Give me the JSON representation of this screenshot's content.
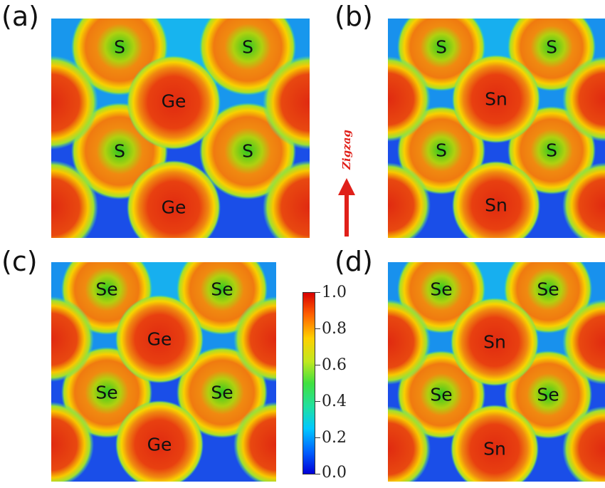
{
  "panels": [
    {
      "label": "(a)",
      "atoms": [
        "S",
        "S",
        "Ge",
        "S",
        "S",
        "Ge"
      ]
    },
    {
      "label": "(b)",
      "atoms": [
        "S",
        "S",
        "Sn",
        "S",
        "S",
        "Sn"
      ]
    },
    {
      "label": "(c)",
      "atoms": [
        "Se",
        "Se",
        "Ge",
        "Se",
        "Se",
        "Ge"
      ]
    },
    {
      "label": "(d)",
      "atoms": [
        "Se",
        "Se",
        "Sn",
        "Se",
        "Se",
        "Sn"
      ]
    }
  ],
  "direction_label": "Zigzag",
  "colorbar": {
    "ticks": [
      "1.0",
      "0.8",
      "0.6",
      "0.4",
      "0.2",
      "0.0"
    ],
    "range": [
      0.0,
      1.0
    ],
    "colors": [
      "#0000d8",
      "#00c8ff",
      "#40e040",
      "#ffd000",
      "#ff6000",
      "#d80000"
    ]
  }
}
